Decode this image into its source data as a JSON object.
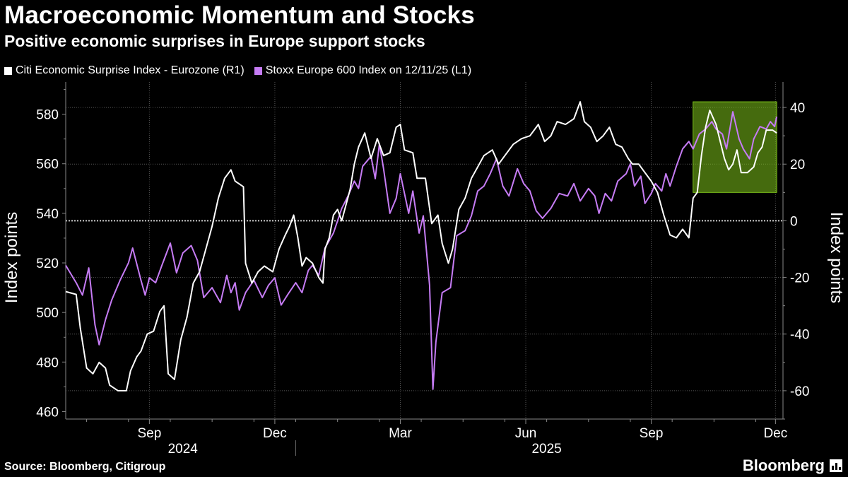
{
  "header": {
    "title": "Macroeconomic Momentum and Stocks",
    "subtitle": "Positive economic surprises in Europe support stocks"
  },
  "legend": [
    {
      "label": "Citi Economic Surprise Index - Eurozone (R1)",
      "color": "#ffffff"
    },
    {
      "label": "Stoxx Europe 600 Index on 12/11/25 (L1)",
      "color": "#c67cf5"
    }
  ],
  "footer": {
    "source": "Source: Bloomberg, Citigroup",
    "brand": "Bloomberg"
  },
  "chart_data": {
    "type": "line",
    "title": "Macroeconomic Momentum and Stocks",
    "left_axis": {
      "label": "Index points",
      "ticks": [
        460,
        480,
        500,
        520,
        540,
        560,
        580
      ],
      "range": [
        457,
        593
      ]
    },
    "right_axis": {
      "label": "Index points",
      "ticks": [
        -60,
        -40,
        -20,
        0,
        20,
        40
      ],
      "range": [
        -70,
        49
      ]
    },
    "x_range": [
      0,
      17.15
    ],
    "x_tick_labels": [
      "Sep",
      "Dec",
      "Mar",
      "Jun",
      "Sep",
      "Dec"
    ],
    "x_tick_positions": [
      2.0,
      5.0,
      8.0,
      11.0,
      14.0,
      16.97
    ],
    "year_labels": [
      {
        "label": "2024",
        "x": 2.8
      },
      {
        "label": "2025",
        "x": 11.5
      }
    ],
    "year_divider_x": 5.5,
    "zero_line": 0,
    "highlight": {
      "x_start": 15.0,
      "x_end": 17.0,
      "y_start": 10,
      "y_end": 42,
      "axis": "right",
      "color": "#7dc31a"
    },
    "series": [
      {
        "name": "Stoxx Europe 600 Index on 12/11/25",
        "axis": "left",
        "color": "#c67cf5",
        "points": [
          [
            0,
            519
          ],
          [
            0.25,
            512
          ],
          [
            0.4,
            507
          ],
          [
            0.55,
            518
          ],
          [
            0.7,
            495
          ],
          [
            0.8,
            487
          ],
          [
            0.95,
            497
          ],
          [
            1.1,
            505
          ],
          [
            1.3,
            513
          ],
          [
            1.5,
            520
          ],
          [
            1.6,
            526
          ],
          [
            1.8,
            513
          ],
          [
            1.9,
            507
          ],
          [
            2.0,
            514
          ],
          [
            2.15,
            512
          ],
          [
            2.3,
            519
          ],
          [
            2.5,
            528
          ],
          [
            2.65,
            516
          ],
          [
            2.8,
            524
          ],
          [
            3.0,
            527
          ],
          [
            3.15,
            521
          ],
          [
            3.3,
            506
          ],
          [
            3.5,
            510
          ],
          [
            3.7,
            504
          ],
          [
            3.85,
            515
          ],
          [
            3.95,
            508
          ],
          [
            4.05,
            512
          ],
          [
            4.15,
            501
          ],
          [
            4.3,
            508
          ],
          [
            4.5,
            513
          ],
          [
            4.7,
            506
          ],
          [
            4.85,
            511
          ],
          [
            5.0,
            514
          ],
          [
            5.15,
            503
          ],
          [
            5.3,
            507
          ],
          [
            5.5,
            512
          ],
          [
            5.65,
            508
          ],
          [
            5.8,
            517
          ],
          [
            5.9,
            519
          ],
          [
            6.05,
            515
          ],
          [
            6.2,
            526
          ],
          [
            6.4,
            532
          ],
          [
            6.6,
            542
          ],
          [
            6.75,
            547
          ],
          [
            6.9,
            553
          ],
          [
            7.0,
            550
          ],
          [
            7.1,
            559
          ],
          [
            7.3,
            563
          ],
          [
            7.4,
            554
          ],
          [
            7.5,
            568
          ],
          [
            7.6,
            558
          ],
          [
            7.75,
            540
          ],
          [
            7.9,
            546
          ],
          [
            8.0,
            556
          ],
          [
            8.2,
            540
          ],
          [
            8.3,
            549
          ],
          [
            8.45,
            532
          ],
          [
            8.55,
            539
          ],
          [
            8.7,
            511
          ],
          [
            8.78,
            469
          ],
          [
            8.85,
            488
          ],
          [
            9.0,
            508
          ],
          [
            9.2,
            510
          ],
          [
            9.35,
            531
          ],
          [
            9.55,
            533
          ],
          [
            9.7,
            539
          ],
          [
            9.85,
            549
          ],
          [
            10.0,
            551
          ],
          [
            10.15,
            556
          ],
          [
            10.3,
            562
          ],
          [
            10.45,
            551
          ],
          [
            10.6,
            547
          ],
          [
            10.8,
            558
          ],
          [
            10.95,
            552
          ],
          [
            11.1,
            549
          ],
          [
            11.25,
            541
          ],
          [
            11.4,
            538
          ],
          [
            11.6,
            542
          ],
          [
            11.8,
            548
          ],
          [
            12.0,
            547
          ],
          [
            12.15,
            552
          ],
          [
            12.3,
            545
          ],
          [
            12.5,
            550
          ],
          [
            12.65,
            547
          ],
          [
            12.75,
            540
          ],
          [
            12.9,
            548
          ],
          [
            13.05,
            545
          ],
          [
            13.2,
            553
          ],
          [
            13.4,
            556
          ],
          [
            13.5,
            560
          ],
          [
            13.6,
            551
          ],
          [
            13.75,
            555
          ],
          [
            13.85,
            544
          ],
          [
            14.0,
            548
          ],
          [
            14.1,
            552
          ],
          [
            14.25,
            549
          ],
          [
            14.35,
            556
          ],
          [
            14.45,
            551
          ],
          [
            14.6,
            559
          ],
          [
            14.75,
            566
          ],
          [
            14.9,
            569
          ],
          [
            15.0,
            566
          ],
          [
            15.15,
            572
          ],
          [
            15.3,
            574
          ],
          [
            15.45,
            577
          ],
          [
            15.55,
            574
          ],
          [
            15.7,
            572
          ],
          [
            15.8,
            566
          ],
          [
            15.95,
            581
          ],
          [
            16.1,
            570
          ],
          [
            16.2,
            566
          ],
          [
            16.35,
            562
          ],
          [
            16.45,
            570
          ],
          [
            16.6,
            575
          ],
          [
            16.75,
            574
          ],
          [
            16.85,
            577
          ],
          [
            16.95,
            575
          ],
          [
            17.0,
            579
          ]
        ]
      },
      {
        "name": "Citi Economic Surprise Index - Eurozone",
        "axis": "right",
        "color": "#ffffff",
        "points": [
          [
            0,
            -25
          ],
          [
            0.25,
            -26
          ],
          [
            0.35,
            -38
          ],
          [
            0.5,
            -52
          ],
          [
            0.65,
            -54
          ],
          [
            0.8,
            -50
          ],
          [
            0.95,
            -52
          ],
          [
            1.05,
            -58
          ],
          [
            1.25,
            -60
          ],
          [
            1.45,
            -60
          ],
          [
            1.55,
            -53
          ],
          [
            1.7,
            -48
          ],
          [
            1.8,
            -46
          ],
          [
            1.95,
            -40
          ],
          [
            2.1,
            -39
          ],
          [
            2.25,
            -32
          ],
          [
            2.35,
            -30
          ],
          [
            2.45,
            -54
          ],
          [
            2.6,
            -56
          ],
          [
            2.75,
            -42
          ],
          [
            2.9,
            -34
          ],
          [
            3.05,
            -22
          ],
          [
            3.2,
            -18
          ],
          [
            3.35,
            -10
          ],
          [
            3.5,
            -2
          ],
          [
            3.65,
            8
          ],
          [
            3.8,
            15
          ],
          [
            3.95,
            18
          ],
          [
            4.05,
            14
          ],
          [
            4.25,
            12
          ],
          [
            4.3,
            -15
          ],
          [
            4.45,
            -22
          ],
          [
            4.6,
            -18
          ],
          [
            4.75,
            -16
          ],
          [
            4.95,
            -18
          ],
          [
            5.1,
            -10
          ],
          [
            5.25,
            -5
          ],
          [
            5.35,
            -2
          ],
          [
            5.45,
            2
          ],
          [
            5.55,
            -6
          ],
          [
            5.65,
            -16
          ],
          [
            5.75,
            -13
          ],
          [
            5.9,
            -15
          ],
          [
            6.05,
            -20
          ],
          [
            6.15,
            -22
          ],
          [
            6.2,
            -10
          ],
          [
            6.3,
            -6
          ],
          [
            6.4,
            2
          ],
          [
            6.5,
            4
          ],
          [
            6.6,
            0
          ],
          [
            6.8,
            11
          ],
          [
            6.9,
            20
          ],
          [
            7.0,
            26
          ],
          [
            7.15,
            31
          ],
          [
            7.3,
            22
          ],
          [
            7.45,
            29
          ],
          [
            7.6,
            23
          ],
          [
            7.75,
            24
          ],
          [
            7.9,
            33
          ],
          [
            8.0,
            34
          ],
          [
            8.1,
            25
          ],
          [
            8.3,
            24
          ],
          [
            8.4,
            15
          ],
          [
            8.6,
            15
          ],
          [
            8.75,
            -1
          ],
          [
            8.9,
            2
          ],
          [
            9.0,
            -8
          ],
          [
            9.15,
            -15
          ],
          [
            9.25,
            -10
          ],
          [
            9.4,
            4
          ],
          [
            9.55,
            8
          ],
          [
            9.7,
            15
          ],
          [
            9.85,
            19
          ],
          [
            10.0,
            23
          ],
          [
            10.2,
            25
          ],
          [
            10.35,
            20
          ],
          [
            10.55,
            24
          ],
          [
            10.7,
            27
          ],
          [
            10.9,
            29
          ],
          [
            11.1,
            30
          ],
          [
            11.3,
            34
          ],
          [
            11.45,
            28
          ],
          [
            11.6,
            30
          ],
          [
            11.75,
            35
          ],
          [
            11.95,
            34
          ],
          [
            12.15,
            36
          ],
          [
            12.3,
            42
          ],
          [
            12.4,
            35
          ],
          [
            12.55,
            33
          ],
          [
            12.7,
            28
          ],
          [
            12.85,
            30
          ],
          [
            13.0,
            33
          ],
          [
            13.15,
            27
          ],
          [
            13.3,
            26
          ],
          [
            13.45,
            22
          ],
          [
            13.55,
            20
          ],
          [
            13.7,
            20
          ],
          [
            13.85,
            17
          ],
          [
            14.0,
            14
          ],
          [
            14.15,
            10
          ],
          [
            14.3,
            2
          ],
          [
            14.45,
            -5
          ],
          [
            14.6,
            -6
          ],
          [
            14.75,
            -3
          ],
          [
            14.9,
            -6
          ],
          [
            15.0,
            8
          ],
          [
            15.1,
            10
          ],
          [
            15.2,
            23
          ],
          [
            15.3,
            33
          ],
          [
            15.4,
            39
          ],
          [
            15.55,
            34
          ],
          [
            15.65,
            28
          ],
          [
            15.75,
            22
          ],
          [
            15.85,
            18
          ],
          [
            15.95,
            20
          ],
          [
            16.05,
            25
          ],
          [
            16.15,
            17
          ],
          [
            16.3,
            17
          ],
          [
            16.45,
            19
          ],
          [
            16.55,
            24
          ],
          [
            16.65,
            26
          ],
          [
            16.75,
            32
          ],
          [
            16.9,
            32
          ],
          [
            17.0,
            31
          ]
        ]
      }
    ]
  }
}
